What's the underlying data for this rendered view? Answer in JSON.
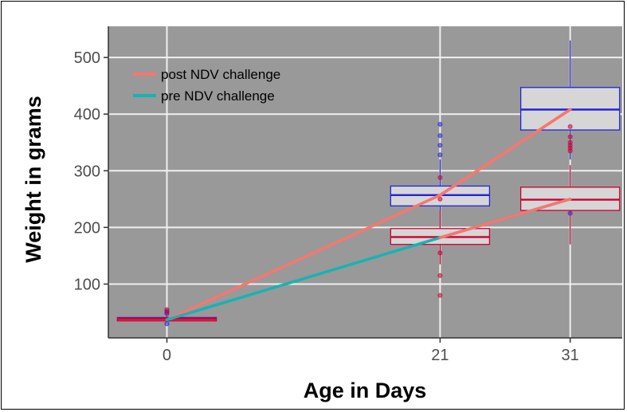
{
  "chart_data": {
    "type": "box+line",
    "xlabel": "Age in Days",
    "ylabel": "Weight in grams",
    "x_ticks": [
      "0",
      "21",
      "31"
    ],
    "y_ticks": [
      "100",
      "200",
      "300",
      "400",
      "500"
    ],
    "x_range": [
      -4.5,
      35
    ],
    "y_range": [
      5,
      555
    ],
    "grid": true,
    "legend_position": "top-left",
    "colors": {
      "panel": "#999999",
      "grid": "#f0f0f0",
      "post": "#F8766D",
      "pre": "#16B3B4",
      "box_blue": "#2222DD",
      "box_red": "#CC0033",
      "box_fill": "#D6D6D6"
    },
    "series": [
      {
        "name": "post NDV challenge",
        "color": "#F8766D",
        "x": [
          0,
          21,
          31
        ],
        "y": [
          37,
          257,
          408
        ]
      },
      {
        "name": "pre NDV challenge",
        "color": "#16B3B4",
        "x": [
          0,
          21,
          31
        ],
        "y": [
          37,
          182,
          250
        ]
      }
    ],
    "overlay_segments": [
      {
        "series": "post NDV challenge",
        "from": [
          21,
          257
        ],
        "to": [
          31,
          408
        ]
      },
      {
        "series": "post NDV challenge",
        "from": [
          21,
          182
        ],
        "to": [
          31,
          250
        ]
      }
    ],
    "boxes": [
      {
        "x": 0,
        "group": "blue",
        "q1": 36,
        "median": 39,
        "q3": 41,
        "whisker_low": 33,
        "whisker_high": 45,
        "outliers": [
          30,
          48,
          52
        ]
      },
      {
        "x": 0,
        "group": "red",
        "q1": 35,
        "median": 38,
        "q3": 40,
        "whisker_low": 33,
        "whisker_high": 44,
        "outliers": [
          50,
          55
        ]
      },
      {
        "x": 21,
        "group": "blue",
        "q1": 238,
        "median": 257,
        "q3": 273,
        "whisker_low": 200,
        "whisker_high": 320,
        "outliers": [
          328,
          345,
          362,
          382
        ]
      },
      {
        "x": 21,
        "group": "red",
        "q1": 170,
        "median": 183,
        "q3": 198,
        "whisker_low": 135,
        "whisker_high": 230,
        "outliers": [
          80,
          115,
          155,
          250,
          288
        ]
      },
      {
        "x": 31,
        "group": "blue",
        "q1": 372,
        "median": 408,
        "q3": 447,
        "whisker_low": 320,
        "whisker_high": 530,
        "outliers": [
          225
        ]
      },
      {
        "x": 31,
        "group": "red",
        "q1": 230,
        "median": 249,
        "q3": 271,
        "whisker_low": 170,
        "whisker_high": 310,
        "outliers": [
          335,
          340,
          345,
          350,
          360,
          378
        ]
      }
    ]
  }
}
